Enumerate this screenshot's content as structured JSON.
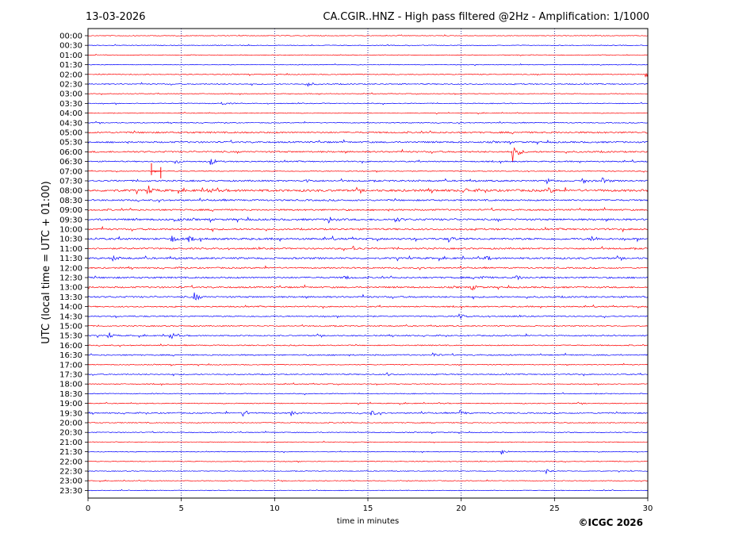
{
  "chart_data": {
    "type": "line",
    "date_label": "13-03-2026",
    "title": "CA.CGIR..HNZ - High pass filtered @2Hz - Amplification: 1/1000",
    "xlabel": "time in minutes",
    "ylabel": "UTC (local time = UTC + 01:00)",
    "copyright": "©ICGC 2026",
    "xlim": [
      0,
      30
    ],
    "x_ticks": [
      0,
      5,
      10,
      15,
      20,
      25,
      30
    ],
    "grid": "vertical dotted lines at 5-minute intervals",
    "colors": {
      "red": "#ff0000",
      "blue": "#0000ff",
      "grid": "#000080"
    },
    "rows": [
      "00:00",
      "00:30",
      "01:00",
      "01:30",
      "02:00",
      "02:30",
      "03:00",
      "03:30",
      "04:00",
      "04:30",
      "05:00",
      "05:30",
      "06:00",
      "06:30",
      "07:00",
      "07:30",
      "08:00",
      "08:30",
      "09:00",
      "09:30",
      "10:00",
      "10:30",
      "11:00",
      "11:30",
      "12:00",
      "12:30",
      "13:00",
      "13:30",
      "14:00",
      "14:30",
      "15:00",
      "15:30",
      "16:00",
      "16:30",
      "17:00",
      "17:30",
      "18:00",
      "18:30",
      "19:00",
      "19:30",
      "20:00",
      "20:30",
      "21:00",
      "21:30",
      "22:00",
      "22:30",
      "23:00",
      "23:30"
    ],
    "row_colors": [
      "red",
      "blue",
      "red",
      "blue",
      "red",
      "blue",
      "red",
      "blue",
      "red",
      "blue",
      "red",
      "blue",
      "red",
      "blue",
      "red",
      "blue",
      "red",
      "blue",
      "red",
      "blue",
      "red",
      "blue",
      "red",
      "blue",
      "red",
      "blue",
      "red",
      "blue",
      "red",
      "blue",
      "red",
      "blue",
      "red",
      "blue",
      "red",
      "blue",
      "red",
      "blue",
      "red",
      "blue",
      "red",
      "blue",
      "red",
      "blue",
      "red",
      "blue",
      "red",
      "blue"
    ],
    "row_noise": [
      0.4,
      0.4,
      0.4,
      0.4,
      0.5,
      0.6,
      0.4,
      0.5,
      0.4,
      0.5,
      0.9,
      0.9,
      0.9,
      0.7,
      0.5,
      0.9,
      1.3,
      0.9,
      0.9,
      1.1,
      1.0,
      1.1,
      0.9,
      1.0,
      0.8,
      0.9,
      0.9,
      0.9,
      0.7,
      0.7,
      0.6,
      0.7,
      0.6,
      0.7,
      0.5,
      0.6,
      0.5,
      0.5,
      0.5,
      0.7,
      0.5,
      0.5,
      0.4,
      0.4,
      0.4,
      0.4,
      0.4,
      0.4
    ],
    "events": [
      {
        "row": 4,
        "x": 29.9,
        "amp": 3
      },
      {
        "row": 5,
        "x": 11.8,
        "amp": 3
      },
      {
        "row": 7,
        "x": 7.2,
        "amp": 2
      },
      {
        "row": 12,
        "x": 22.8,
        "amp": 12
      },
      {
        "row": 13,
        "x": 4.7,
        "amp": 3
      },
      {
        "row": 13,
        "x": 6.6,
        "amp": 4
      },
      {
        "row": 15,
        "x": 11.7,
        "amp": 2
      },
      {
        "row": 15,
        "x": 24.6,
        "amp": 3
      },
      {
        "row": 15,
        "x": 26.5,
        "amp": 3
      },
      {
        "row": 15,
        "x": 27.6,
        "amp": 3
      },
      {
        "row": 16,
        "x": 3.2,
        "amp": 4
      },
      {
        "row": 16,
        "x": 6.4,
        "amp": 3
      },
      {
        "row": 16,
        "x": 20.2,
        "amp": 3
      },
      {
        "row": 16,
        "x": 24.7,
        "amp": 3
      },
      {
        "row": 19,
        "x": 4.6,
        "amp": 3
      },
      {
        "row": 19,
        "x": 12.9,
        "amp": 4
      },
      {
        "row": 19,
        "x": 16.5,
        "amp": 3
      },
      {
        "row": 21,
        "x": 4.5,
        "amp": 4
      },
      {
        "row": 21,
        "x": 5.4,
        "amp": 3
      },
      {
        "row": 21,
        "x": 19.3,
        "amp": 4
      },
      {
        "row": 21,
        "x": 27.0,
        "amp": 4
      },
      {
        "row": 22,
        "x": 14.2,
        "amp": 3
      },
      {
        "row": 23,
        "x": 1.3,
        "amp": 3
      },
      {
        "row": 23,
        "x": 21.3,
        "amp": 3
      },
      {
        "row": 25,
        "x": 13.7,
        "amp": 3
      },
      {
        "row": 25,
        "x": 21.0,
        "amp": 3
      },
      {
        "row": 25,
        "x": 22.9,
        "amp": 4
      },
      {
        "row": 26,
        "x": 20.6,
        "amp": 3
      },
      {
        "row": 27,
        "x": 5.7,
        "amp": 5
      },
      {
        "row": 29,
        "x": 19.9,
        "amp": 3
      },
      {
        "row": 31,
        "x": 1.1,
        "amp": 3
      },
      {
        "row": 31,
        "x": 4.4,
        "amp": 5
      },
      {
        "row": 33,
        "x": 18.5,
        "amp": 3
      },
      {
        "row": 35,
        "x": 16.0,
        "amp": 2
      },
      {
        "row": 39,
        "x": 8.3,
        "amp": 5
      },
      {
        "row": 39,
        "x": 10.9,
        "amp": 3
      },
      {
        "row": 39,
        "x": 15.2,
        "amp": 3
      },
      {
        "row": 39,
        "x": 19.9,
        "amp": 4
      },
      {
        "row": 43,
        "x": 22.2,
        "amp": 3
      },
      {
        "row": 45,
        "x": 24.6,
        "amp": 3
      }
    ],
    "glitch": {
      "row": 14,
      "x_start": 3.4,
      "x_end": 3.9,
      "amp": 10
    }
  }
}
